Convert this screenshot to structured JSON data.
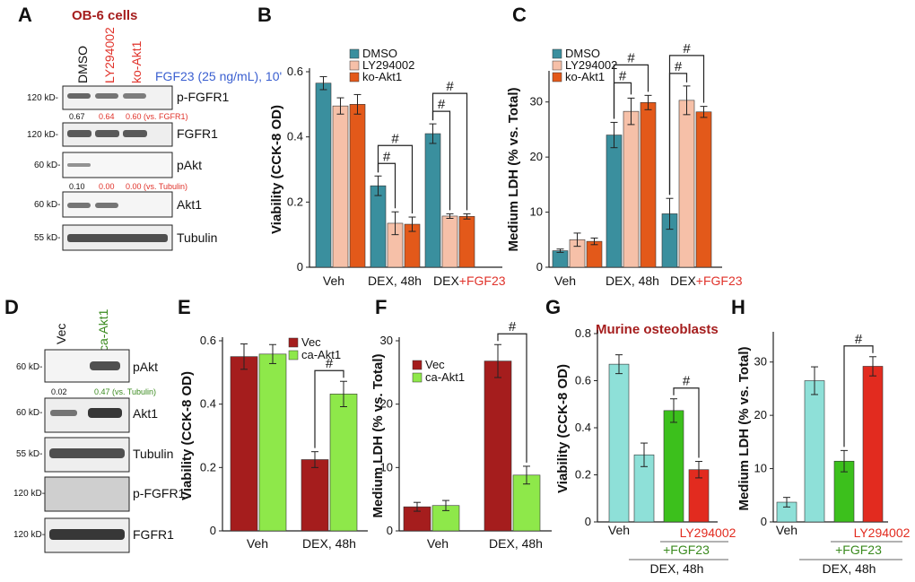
{
  "colors": {
    "dmso": "#3a8f9e",
    "ly": "#f6c0a8",
    "ko": "#e3591a",
    "vec": "#a51d1d",
    "ca": "#8ee84a",
    "teal_light": "#8ee0d8",
    "green": "#3cc01c",
    "red": "#e22b1f",
    "text_red": "#e0322a",
    "text_blue": "#3a5fd0",
    "text_green": "#3a8a1e",
    "title_red": "#a51d1d"
  },
  "panels": {
    "A": {
      "letter": "A",
      "title": "OB-6 cells",
      "lanes": [
        "DMSO",
        "LY294002",
        "ko-Akt1"
      ],
      "treatment": "FGF23 (25 ng/mL), 10'",
      "bands": [
        {
          "kd": "120 kD-",
          "label": "p-FGFR1"
        },
        {
          "kd": "120 kD-",
          "label": "FGFR1"
        },
        {
          "kd": "60 kD-",
          "label": "pAkt"
        },
        {
          "kd": "60 kD-",
          "label": "Akt1"
        },
        {
          "kd": "55 kD-",
          "label": "Tubulin"
        }
      ],
      "quant1": [
        "0.67",
        "0.64",
        "0.60 (vs. FGFR1)"
      ],
      "quant2": [
        "0.10",
        "0.00",
        "0.00 (vs. Tubulin)"
      ]
    },
    "B": {
      "letter": "B"
    },
    "C": {
      "letter": "C"
    },
    "D": {
      "letter": "D",
      "lanes": [
        "Vec",
        "ca-Akt1"
      ],
      "bands": [
        {
          "kd": "60 kD-",
          "label": "pAkt"
        },
        {
          "kd": "60 kD-",
          "label": "Akt1"
        },
        {
          "kd": "55 kD-",
          "label": "Tubulin"
        },
        {
          "kd": "120 kD-",
          "label": "p-FGFR1"
        },
        {
          "kd": "120 kD-",
          "label": "FGFR1"
        }
      ],
      "quant": [
        "0.02",
        "0.47 (vs. Tubulin)"
      ]
    },
    "E": {
      "letter": "E"
    },
    "F": {
      "letter": "F"
    },
    "G": {
      "letter": "G",
      "title": "Murine osteoblasts",
      "sub_fgf": "+FGF23",
      "sub_ly": "LY294002",
      "sub_dex": "DEX, 48h"
    },
    "H": {
      "letter": "H",
      "sub_fgf": "+FGF23",
      "sub_ly": "LY294002",
      "sub_dex": "DEX, 48h"
    }
  },
  "chart_data": [
    {
      "id": "B",
      "type": "bar",
      "title": "",
      "ylabel": "Viability (CCK-8 OD)",
      "categories": [
        "Veh",
        "DEX, 48h",
        "DEX+FGF23"
      ],
      "cat_last_prefix": "DEX",
      "cat_last_suffix": "+FGF23",
      "ylim": [
        0,
        0.6
      ],
      "yticks": [
        0,
        0.2,
        0.4,
        0.6
      ],
      "ytick_labels": [
        "0",
        "0.2",
        "0.4",
        "0.6"
      ],
      "series": [
        {
          "name": "DMSO",
          "values": [
            0.565,
            0.25,
            0.41
          ],
          "errors": [
            0.02,
            0.03,
            0.03
          ]
        },
        {
          "name": "LY294002",
          "values": [
            0.495,
            0.135,
            0.157
          ],
          "errors": [
            0.025,
            0.035,
            0.007
          ]
        },
        {
          "name": "ko-Akt1",
          "values": [
            0.5,
            0.132,
            0.156
          ],
          "errors": [
            0.03,
            0.022,
            0.008
          ]
        }
      ],
      "significance": "#"
    },
    {
      "id": "C",
      "type": "bar",
      "title": "",
      "ylabel": "Medium LDH (% vs. Total)",
      "categories": [
        "Veh",
        "DEX, 48h",
        "DEX+FGF23"
      ],
      "cat_last_prefix": "DEX",
      "cat_last_suffix": "+FGF23",
      "ylim": [
        0,
        35
      ],
      "yticks": [
        0,
        10,
        20,
        30
      ],
      "ytick_labels": [
        "0",
        "10",
        "20",
        "30"
      ],
      "series": [
        {
          "name": "DMSO",
          "values": [
            3.0,
            24.0,
            9.7
          ],
          "errors": [
            0.3,
            2.3,
            2.8
          ]
        },
        {
          "name": "LY294002",
          "values": [
            5.0,
            28.3,
            30.3
          ],
          "errors": [
            1.2,
            2.4,
            2.6
          ]
        },
        {
          "name": "ko-Akt1",
          "values": [
            4.7,
            29.9,
            28.2
          ],
          "errors": [
            0.6,
            1.3,
            1.0
          ]
        }
      ],
      "significance": "#"
    },
    {
      "id": "E",
      "type": "bar",
      "title": "",
      "ylabel": "Viability (CCK-8 OD)",
      "categories": [
        "Veh",
        "DEX, 48h"
      ],
      "ylim": [
        0,
        0.6
      ],
      "yticks": [
        0,
        0.2,
        0.4,
        0.6
      ],
      "ytick_labels": [
        "0",
        "0.2",
        "0.4",
        "0.6"
      ],
      "series": [
        {
          "name": "Vec",
          "values": [
            0.55,
            0.225
          ],
          "errors": [
            0.04,
            0.025
          ]
        },
        {
          "name": "ca-Akt1",
          "values": [
            0.558,
            0.432
          ],
          "errors": [
            0.03,
            0.04
          ]
        }
      ],
      "significance": "#"
    },
    {
      "id": "F",
      "type": "bar",
      "title": "",
      "ylabel": "Medium LDH (% vs. Total)",
      "categories": [
        "Veh",
        "DEX, 48h"
      ],
      "ylim": [
        0,
        30
      ],
      "yticks": [
        0,
        10,
        20,
        30
      ],
      "ytick_labels": [
        "0",
        "10",
        "20",
        "30"
      ],
      "series": [
        {
          "name": "Vec",
          "values": [
            3.8,
            26.8
          ],
          "errors": [
            0.7,
            2.6
          ]
        },
        {
          "name": "ca-Akt1",
          "values": [
            4.0,
            8.8
          ],
          "errors": [
            0.8,
            1.4
          ]
        }
      ],
      "significance": "#"
    },
    {
      "id": "G",
      "type": "bar",
      "title": "Murine osteoblasts",
      "ylabel": "Viability (CCK-8 OD)",
      "categories": [
        "Veh",
        "DEX, 48h",
        "DEX+FGF23",
        "DEX+FGF23+LY294002"
      ],
      "ylim": [
        0,
        0.8
      ],
      "yticks": [
        0,
        0.2,
        0.4,
        0.6,
        0.8
      ],
      "ytick_labels": [
        "0",
        "0.2",
        "0.4",
        "0.6",
        "0.8"
      ],
      "values": [
        0.67,
        0.285,
        0.473,
        0.222
      ],
      "errors": [
        0.04,
        0.05,
        0.05,
        0.035
      ],
      "colors": [
        "#8ee0d8",
        "#8ee0d8",
        "#3cc01c",
        "#e22b1f"
      ],
      "significance": "#"
    },
    {
      "id": "H",
      "type": "bar",
      "title": "",
      "ylabel": "Medium LDH (% vs. Total)",
      "categories": [
        "Veh",
        "DEX, 48h",
        "DEX+FGF23",
        "DEX+FGF23+LY294002"
      ],
      "ylim": [
        0,
        35
      ],
      "yticks": [
        0,
        10,
        20,
        30
      ],
      "ytick_labels": [
        "0",
        "10",
        "20",
        "30"
      ],
      "values": [
        3.7,
        26.5,
        11.4,
        29.2
      ],
      "errors": [
        0.9,
        2.6,
        2.0,
        1.8
      ],
      "colors": [
        "#8ee0d8",
        "#8ee0d8",
        "#3cc01c",
        "#e22b1f"
      ],
      "significance": "#"
    }
  ]
}
